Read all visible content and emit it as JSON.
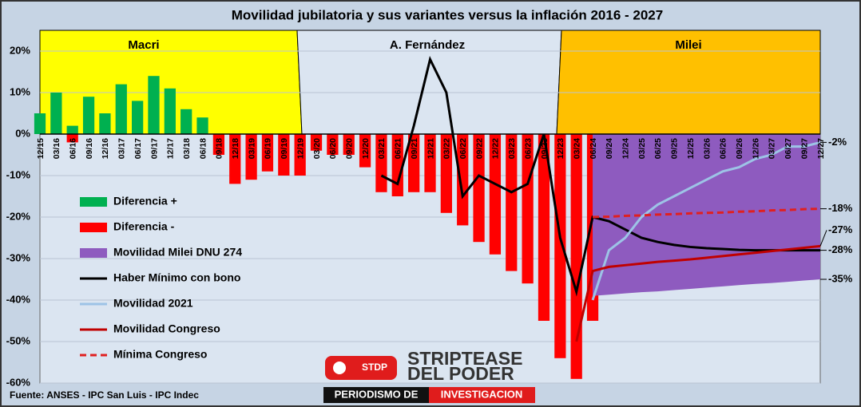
{
  "chart_data": {
    "type": "bar",
    "title": "Movilidad jubilatoria y sus variantes versus la inflación 2016 - 2027",
    "source": "Fuente: ANSES  - IPC San Luis - IPC Indec",
    "periods": [
      {
        "label": "Macri",
        "color": "#ffff00"
      },
      {
        "label": "A. Fernández",
        "color": "#dbe5f1"
      },
      {
        "label": "Milei",
        "color": "#ffc000"
      }
    ],
    "categories": [
      "12/15",
      "03/16",
      "06/16",
      "09/16",
      "12/16",
      "03/17",
      "06/17",
      "09/17",
      "12/17",
      "03/18",
      "06/18",
      "09/18",
      "12/18",
      "03/19",
      "06/19",
      "09/19",
      "12/19",
      "03/20",
      "06/20",
      "09/20",
      "12/20",
      "03/21",
      "06/21",
      "09/21",
      "12/21",
      "03/22",
      "06/22",
      "09/22",
      "12/22",
      "03/23",
      "06/23",
      "09/23",
      "12/23",
      "03/24",
      "06/24",
      "09/24",
      "12/24",
      "03/25",
      "06/25",
      "09/25",
      "12/25",
      "03/26",
      "06/26",
      "09/26",
      "12/26",
      "03/27",
      "06/27",
      "09/27",
      "12/27"
    ],
    "ylim": [
      -60,
      25
    ],
    "yticks": [
      {
        "value": -60,
        "label": "-60%"
      },
      {
        "value": -50,
        "label": "-50%"
      },
      {
        "value": -40,
        "label": "-40%"
      },
      {
        "value": -30,
        "label": "-30%"
      },
      {
        "value": -20,
        "label": "-20%"
      },
      {
        "value": -10,
        "label": "-10%"
      },
      {
        "value": 0,
        "label": "0%"
      },
      {
        "value": 10,
        "label": "10%"
      },
      {
        "value": 20,
        "label": "20%"
      }
    ],
    "grid": true,
    "series": [
      {
        "name": "Diferencia +",
        "kind": "bar",
        "color": "#00b050",
        "values": [
          5,
          10,
          2,
          9,
          5,
          12,
          8,
          14,
          11,
          6,
          4,
          null,
          null,
          null,
          null,
          null,
          null,
          null,
          null,
          null,
          null,
          null,
          null,
          null,
          null,
          null,
          null,
          null,
          null,
          null,
          null,
          null,
          null,
          null,
          null,
          null,
          null,
          null,
          null,
          null,
          null,
          null,
          null,
          null,
          null,
          null,
          null,
          null,
          null
        ]
      },
      {
        "name": "Diferencia -",
        "kind": "bar",
        "color": "#ff0000",
        "values": [
          null,
          null,
          -2,
          null,
          null,
          null,
          null,
          null,
          null,
          null,
          null,
          -5,
          -12,
          -11,
          -9,
          -10,
          -10,
          -4,
          -5,
          -5,
          -8,
          -14,
          -15,
          -14,
          -14,
          -19,
          -22,
          -26,
          -29,
          -33,
          -36,
          -45,
          -54,
          -59,
          -45,
          null,
          null,
          null,
          null,
          null,
          null,
          null,
          null,
          null,
          null,
          null,
          null,
          null,
          null
        ]
      },
      {
        "name": "Movilidad Milei DNU 274",
        "kind": "area",
        "color": "#8e5bbf",
        "values": [
          null,
          null,
          null,
          null,
          null,
          null,
          null,
          null,
          null,
          null,
          null,
          null,
          null,
          null,
          null,
          null,
          null,
          null,
          null,
          null,
          null,
          null,
          null,
          null,
          null,
          null,
          null,
          null,
          null,
          null,
          null,
          null,
          null,
          null,
          -39,
          -38.7,
          -38.4,
          -38.1,
          -37.9,
          -37.6,
          -37.3,
          -37,
          -36.7,
          -36.4,
          -36.1,
          -35.9,
          -35.6,
          -35.3,
          -35
        ]
      },
      {
        "name": "Haber Mínimo con bono",
        "kind": "line",
        "color": "#000000",
        "values": [
          null,
          null,
          null,
          null,
          null,
          null,
          null,
          null,
          null,
          null,
          null,
          null,
          null,
          null,
          null,
          null,
          null,
          null,
          null,
          null,
          null,
          -10,
          -12,
          2,
          18,
          10,
          -15,
          -10,
          -12,
          -14,
          -12,
          0,
          -25,
          -38,
          -20,
          -21,
          -23,
          -25,
          -26,
          -26.7,
          -27.2,
          -27.5,
          -27.7,
          -27.9,
          -28,
          -28,
          -28,
          -28,
          -28
        ]
      },
      {
        "name": "Movilidad 2021",
        "kind": "line",
        "color": "#9dc3e6",
        "values": [
          null,
          null,
          null,
          null,
          null,
          null,
          null,
          null,
          null,
          null,
          null,
          null,
          null,
          null,
          null,
          null,
          null,
          null,
          null,
          null,
          null,
          null,
          null,
          null,
          null,
          null,
          null,
          null,
          null,
          null,
          null,
          null,
          null,
          null,
          -40,
          -28,
          -25,
          -20,
          -17,
          -15,
          -13,
          -11,
          -9,
          -8,
          -6,
          -5,
          -3,
          -3,
          -2
        ]
      },
      {
        "name": "Movilidad Congreso",
        "kind": "line",
        "color": "#c00000",
        "values": [
          null,
          null,
          null,
          null,
          null,
          null,
          null,
          null,
          null,
          null,
          null,
          null,
          null,
          null,
          null,
          null,
          null,
          null,
          null,
          null,
          null,
          null,
          null,
          null,
          null,
          null,
          null,
          null,
          null,
          null,
          null,
          null,
          null,
          -50,
          -33,
          -32,
          -31.6,
          -31.2,
          -30.8,
          -30.5,
          -30.2,
          -29.8,
          -29.4,
          -29,
          -28.6,
          -28.2,
          -27.8,
          -27.4,
          -27
        ]
      },
      {
        "name": "Mínima Congreso",
        "kind": "line",
        "dash": true,
        "color": "#e02020",
        "values": [
          null,
          null,
          null,
          null,
          null,
          null,
          null,
          null,
          null,
          null,
          null,
          null,
          null,
          null,
          null,
          null,
          null,
          null,
          null,
          null,
          null,
          null,
          null,
          null,
          null,
          null,
          null,
          null,
          null,
          null,
          null,
          null,
          null,
          null,
          -20,
          -19.9,
          -19.7,
          -19.6,
          -19.4,
          -19.3,
          -19.1,
          -19,
          -18.9,
          -18.7,
          -18.6,
          -18.4,
          -18.3,
          -18.1,
          -18
        ]
      }
    ],
    "end_labels": [
      {
        "value": -2,
        "label": "-2%"
      },
      {
        "value": -18,
        "label": "-18%"
      },
      {
        "value": -27,
        "label": "-27%"
      },
      {
        "value": -28,
        "label": "-28%"
      },
      {
        "value": -35,
        "label": "-35%"
      }
    ],
    "logo": {
      "badge": "STDP",
      "line1": "STRIPTEASE",
      "line2": "DEL PODER",
      "tagline1": "PERIODISMO DE",
      "tagline2": "INVESTIGACION"
    }
  }
}
